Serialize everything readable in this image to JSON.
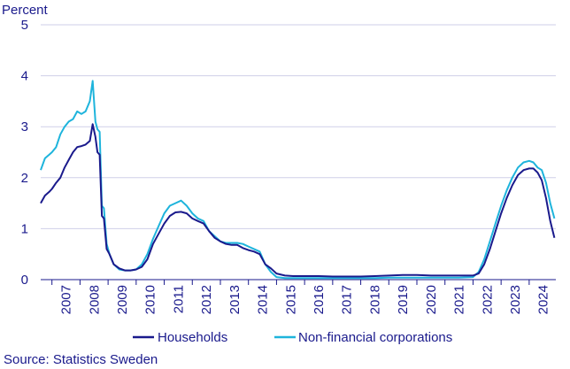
{
  "chart_data": {
    "type": "line",
    "title": "",
    "ylabel": "Percent",
    "xlabel": "",
    "ylim": [
      0,
      5
    ],
    "yticks": [
      0,
      1,
      2,
      3,
      4,
      5
    ],
    "xlim": [
      2006.6,
      2024.95
    ],
    "x_tick_labels": [
      "2007",
      "2008",
      "2009",
      "2010",
      "2011",
      "2012",
      "2013",
      "2014",
      "2015",
      "2016",
      "2017",
      "2018",
      "2019",
      "2020",
      "2021",
      "2022",
      "2023",
      "2024"
    ],
    "grid": "horizontal",
    "legend_position": "bottom",
    "colors": {
      "households": "#1a1a8c",
      "corporations": "#1eb4dc",
      "grid": "#cfcfe8",
      "text": "#1a1a8c"
    },
    "series": [
      {
        "name": "Households",
        "color": "#1a1a8c",
        "x": [
          2006.6,
          2006.75,
          2006.9,
          2007.0,
          2007.15,
          2007.3,
          2007.45,
          2007.6,
          2007.75,
          2007.9,
          2008.05,
          2008.2,
          2008.35,
          2008.45,
          2008.55,
          2008.62,
          2008.7,
          2008.78,
          2008.85,
          2008.95,
          2009.05,
          2009.2,
          2009.4,
          2009.6,
          2009.8,
          2010.0,
          2010.2,
          2010.4,
          2010.6,
          2010.8,
          2011.0,
          2011.2,
          2011.4,
          2011.6,
          2011.8,
          2012.0,
          2012.2,
          2012.4,
          2012.6,
          2012.8,
          2013.0,
          2013.2,
          2013.4,
          2013.6,
          2013.8,
          2014.0,
          2014.2,
          2014.4,
          2014.6,
          2014.8,
          2015.0,
          2015.3,
          2015.6,
          2016.0,
          2016.5,
          2017.0,
          2017.5,
          2018.0,
          2018.5,
          2019.0,
          2019.5,
          2020.0,
          2020.5,
          2021.0,
          2021.5,
          2022.0,
          2022.2,
          2022.4,
          2022.6,
          2022.8,
          2023.0,
          2023.2,
          2023.4,
          2023.6,
          2023.8,
          2024.0,
          2024.15,
          2024.3,
          2024.45,
          2024.6,
          2024.75,
          2024.9
        ],
        "values": [
          1.5,
          1.65,
          1.72,
          1.78,
          1.9,
          2.0,
          2.2,
          2.35,
          2.5,
          2.6,
          2.62,
          2.65,
          2.72,
          3.05,
          2.8,
          2.5,
          2.45,
          1.25,
          1.2,
          0.6,
          0.5,
          0.3,
          0.22,
          0.18,
          0.18,
          0.2,
          0.25,
          0.4,
          0.7,
          0.9,
          1.1,
          1.25,
          1.32,
          1.33,
          1.3,
          1.2,
          1.15,
          1.1,
          0.95,
          0.82,
          0.75,
          0.7,
          0.68,
          0.68,
          0.62,
          0.58,
          0.55,
          0.5,
          0.3,
          0.22,
          0.12,
          0.08,
          0.07,
          0.07,
          0.07,
          0.06,
          0.06,
          0.06,
          0.07,
          0.08,
          0.09,
          0.09,
          0.08,
          0.08,
          0.08,
          0.08,
          0.12,
          0.3,
          0.6,
          0.95,
          1.3,
          1.6,
          1.85,
          2.05,
          2.15,
          2.18,
          2.18,
          2.1,
          1.95,
          1.6,
          1.15,
          0.82
        ]
      },
      {
        "name": "Non-financial corporations",
        "color": "#1eb4dc",
        "x": [
          2006.6,
          2006.75,
          2006.9,
          2007.0,
          2007.15,
          2007.3,
          2007.45,
          2007.6,
          2007.75,
          2007.9,
          2008.05,
          2008.2,
          2008.35,
          2008.45,
          2008.55,
          2008.62,
          2008.7,
          2008.78,
          2008.85,
          2008.95,
          2009.05,
          2009.2,
          2009.4,
          2009.6,
          2009.8,
          2010.0,
          2010.2,
          2010.4,
          2010.6,
          2010.8,
          2011.0,
          2011.2,
          2011.4,
          2011.6,
          2011.8,
          2012.0,
          2012.2,
          2012.4,
          2012.6,
          2012.8,
          2013.0,
          2013.2,
          2013.4,
          2013.6,
          2013.8,
          2014.0,
          2014.2,
          2014.4,
          2014.6,
          2014.8,
          2015.0,
          2015.3,
          2015.6,
          2016.0,
          2016.5,
          2017.0,
          2017.5,
          2018.0,
          2018.5,
          2019.0,
          2019.5,
          2020.0,
          2020.5,
          2021.0,
          2021.5,
          2022.0,
          2022.2,
          2022.4,
          2022.6,
          2022.8,
          2023.0,
          2023.2,
          2023.4,
          2023.6,
          2023.8,
          2024.0,
          2024.15,
          2024.3,
          2024.45,
          2024.6,
          2024.75,
          2024.9
        ],
        "values": [
          2.15,
          2.38,
          2.45,
          2.5,
          2.6,
          2.85,
          3.0,
          3.1,
          3.15,
          3.3,
          3.25,
          3.3,
          3.5,
          3.9,
          3.1,
          2.95,
          2.9,
          1.45,
          1.4,
          0.7,
          0.5,
          0.3,
          0.2,
          0.18,
          0.18,
          0.2,
          0.3,
          0.5,
          0.8,
          1.05,
          1.3,
          1.45,
          1.5,
          1.55,
          1.45,
          1.3,
          1.2,
          1.15,
          0.95,
          0.85,
          0.75,
          0.72,
          0.72,
          0.72,
          0.7,
          0.65,
          0.6,
          0.55,
          0.3,
          0.15,
          0.05,
          0.03,
          0.03,
          0.03,
          0.03,
          0.03,
          0.03,
          0.03,
          0.03,
          0.04,
          0.04,
          0.04,
          0.04,
          0.04,
          0.04,
          0.05,
          0.15,
          0.4,
          0.75,
          1.1,
          1.45,
          1.75,
          2.0,
          2.2,
          2.3,
          2.33,
          2.3,
          2.2,
          2.15,
          1.9,
          1.5,
          1.2
        ]
      }
    ],
    "source": "Source: Statistics Sweden"
  }
}
